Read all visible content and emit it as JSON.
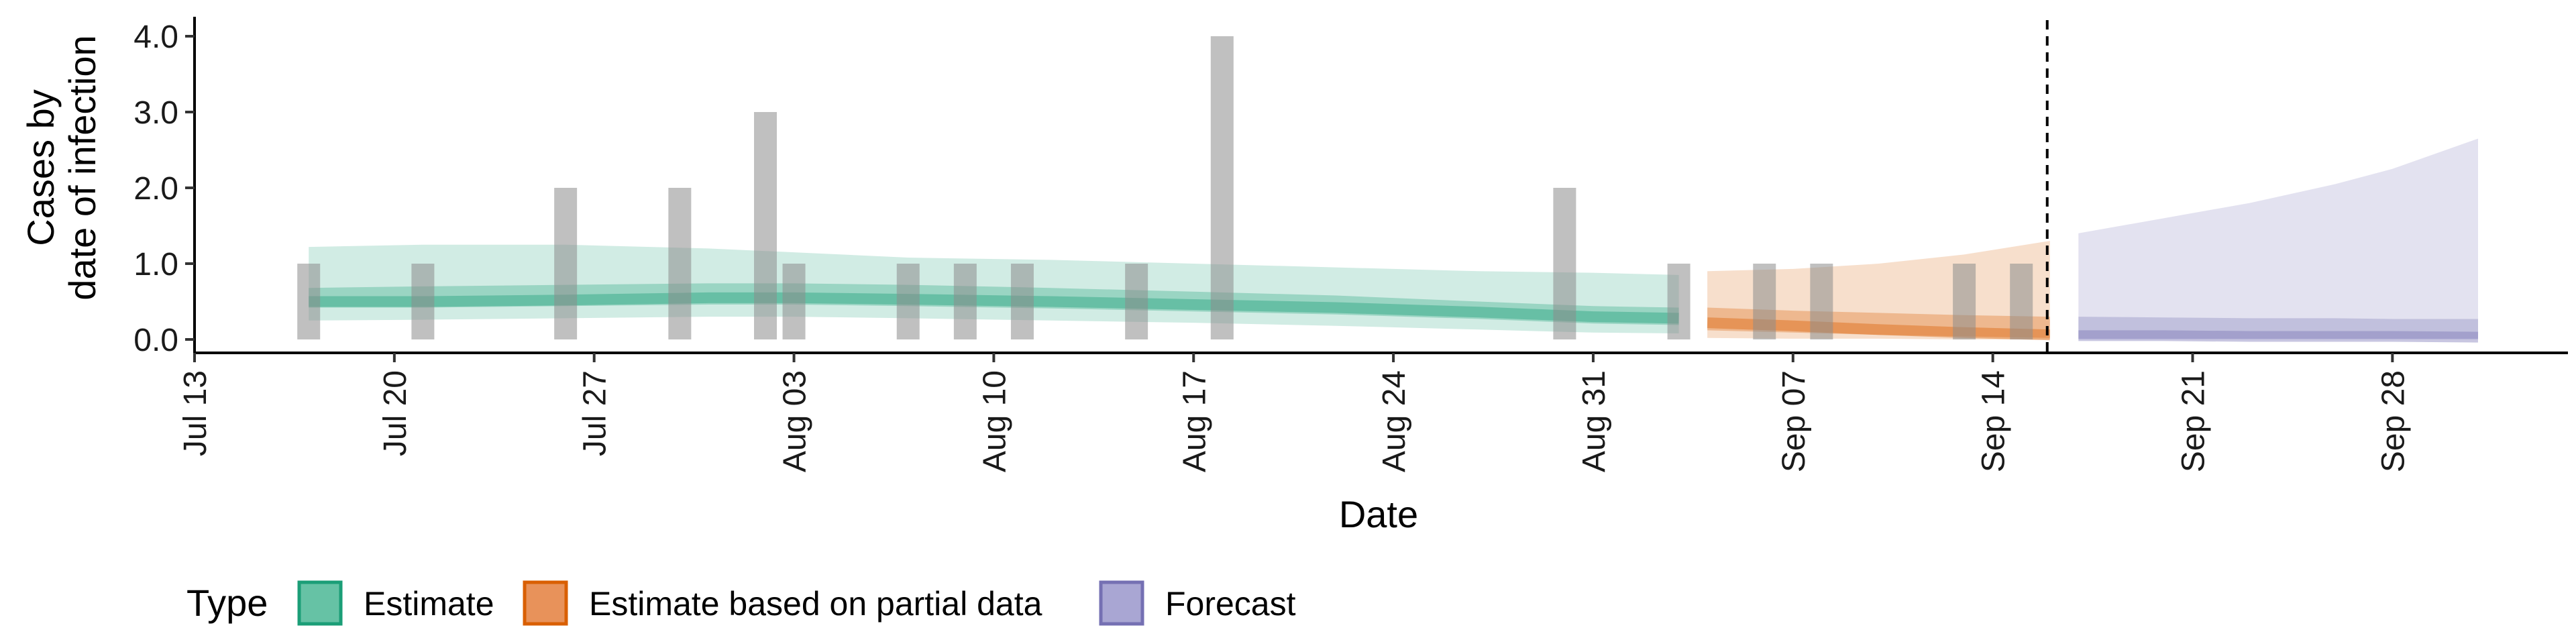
{
  "chart_data": {
    "type": "area",
    "ylabel_lines": [
      "Cases by",
      "date of infection"
    ],
    "xlabel": "Date",
    "y_ticks": [
      "0.0",
      "1.0",
      "2.0",
      "3.0",
      "4.0"
    ],
    "y_tick_values": [
      0,
      1,
      2,
      3,
      4
    ],
    "ylim": [
      -0.15,
      4.2
    ],
    "x_ticks": [
      {
        "date": "2020-07-13",
        "label": "Jul 13"
      },
      {
        "date": "2020-07-20",
        "label": "Jul 20"
      },
      {
        "date": "2020-07-27",
        "label": "Jul 27"
      },
      {
        "date": "2020-08-03",
        "label": "Aug 03"
      },
      {
        "date": "2020-08-10",
        "label": "Aug 10"
      },
      {
        "date": "2020-08-17",
        "label": "Aug 17"
      },
      {
        "date": "2020-08-24",
        "label": "Aug 24"
      },
      {
        "date": "2020-08-31",
        "label": "Aug 31"
      },
      {
        "date": "2020-09-07",
        "label": "Sep 07"
      },
      {
        "date": "2020-09-14",
        "label": "Sep 14"
      },
      {
        "date": "2020-09-21",
        "label": "Sep 21"
      },
      {
        "date": "2020-09-28",
        "label": "Sep 28"
      }
    ],
    "xlim": [
      "2020-07-13",
      "2020-10-03"
    ],
    "forecast_start": "2020-09-16",
    "reported_cases": [
      {
        "date": "2020-07-17",
        "value": 1
      },
      {
        "date": "2020-07-21",
        "value": 1
      },
      {
        "date": "2020-07-26",
        "value": 2
      },
      {
        "date": "2020-07-30",
        "value": 2
      },
      {
        "date": "2020-08-02",
        "value": 3
      },
      {
        "date": "2020-08-03",
        "value": 1
      },
      {
        "date": "2020-08-07",
        "value": 1
      },
      {
        "date": "2020-08-09",
        "value": 1
      },
      {
        "date": "2020-08-11",
        "value": 1
      },
      {
        "date": "2020-08-15",
        "value": 1
      },
      {
        "date": "2020-08-18",
        "value": 4
      },
      {
        "date": "2020-08-30",
        "value": 2
      },
      {
        "date": "2020-09-03",
        "value": 1
      },
      {
        "date": "2020-09-06",
        "value": 1
      },
      {
        "date": "2020-09-08",
        "value": 1
      },
      {
        "date": "2020-09-13",
        "value": 1
      },
      {
        "date": "2020-09-15",
        "value": 1
      }
    ],
    "series": [
      {
        "name": "Estimate",
        "color": "#1b9e77",
        "x": [
          "2020-07-17",
          "2020-07-21",
          "2020-07-26",
          "2020-07-31",
          "2020-08-03",
          "2020-08-07",
          "2020-08-12",
          "2020-08-17",
          "2020-08-22",
          "2020-08-27",
          "2020-08-31",
          "2020-09-03"
        ],
        "median": [
          0.5,
          0.5,
          0.52,
          0.55,
          0.55,
          0.53,
          0.5,
          0.46,
          0.42,
          0.36,
          0.3,
          0.28
        ],
        "lower_50": [
          0.42,
          0.42,
          0.44,
          0.46,
          0.46,
          0.44,
          0.41,
          0.37,
          0.33,
          0.27,
          0.21,
          0.19
        ],
        "upper_50": [
          0.68,
          0.7,
          0.72,
          0.74,
          0.74,
          0.72,
          0.68,
          0.63,
          0.58,
          0.5,
          0.44,
          0.42
        ],
        "lower_90": [
          0.25,
          0.26,
          0.28,
          0.3,
          0.3,
          0.28,
          0.25,
          0.22,
          0.18,
          0.13,
          0.09,
          0.08
        ],
        "upper_90": [
          1.22,
          1.25,
          1.25,
          1.2,
          1.15,
          1.08,
          1.05,
          1.0,
          0.95,
          0.9,
          0.88,
          0.85
        ]
      },
      {
        "name": "Estimate based on partial data",
        "color": "#d95f02",
        "x": [
          "2020-09-04",
          "2020-09-07",
          "2020-09-10",
          "2020-09-13",
          "2020-09-16"
        ],
        "median": [
          0.22,
          0.18,
          0.13,
          0.09,
          0.06
        ],
        "lower_50": [
          0.12,
          0.09,
          0.06,
          0.04,
          0.02
        ],
        "upper_50": [
          0.42,
          0.38,
          0.35,
          0.32,
          0.3
        ],
        "lower_90": [
          0.02,
          0.01,
          0.01,
          0.0,
          0.0
        ],
        "upper_90": [
          0.9,
          0.93,
          1.0,
          1.12,
          1.3
        ]
      },
      {
        "name": "Forecast",
        "color": "#7570b3",
        "x": [
          "2020-09-17",
          "2020-09-20",
          "2020-09-23",
          "2020-09-26",
          "2020-09-28",
          "2020-10-01"
        ],
        "median": [
          0.05,
          0.05,
          0.04,
          0.04,
          0.04,
          0.03
        ],
        "lower_50": [
          0.01,
          0.01,
          0.01,
          0.01,
          0.01,
          0.01
        ],
        "upper_50": [
          0.3,
          0.29,
          0.28,
          0.28,
          0.27,
          0.27
        ],
        "lower_90": [
          0.0,
          0.0,
          0.0,
          0.0,
          0.0,
          0.0
        ],
        "upper_90": [
          1.4,
          1.6,
          1.8,
          2.05,
          2.25,
          2.65
        ]
      }
    ],
    "legend": {
      "title": "Type",
      "position": "bottom",
      "items": [
        {
          "label": "Estimate",
          "fill": "#66c2a5",
          "stroke": "#1b9e77"
        },
        {
          "label": "Estimate based on partial data",
          "fill": "#e8925a",
          "stroke": "#d95f02"
        },
        {
          "label": "Forecast",
          "fill": "#a9a6d3",
          "stroke": "#7570b3"
        }
      ]
    },
    "grid": false
  }
}
